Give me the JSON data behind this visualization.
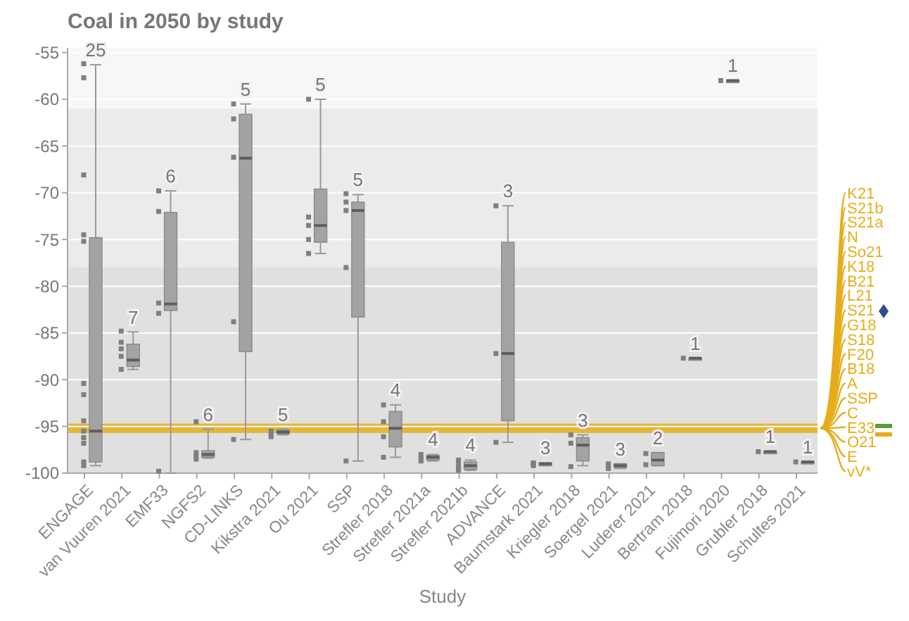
{
  "chart_data": {
    "type": "box",
    "title": "Coal in 2050 by study",
    "xlabel": "Study",
    "categories": [
      "ENGAGE",
      "van Vuuren 2021",
      "EMF33",
      "NGFS2",
      "CD-LINKS",
      "Kikstra 2021",
      "Ou 2021",
      "SSP",
      "Strefler 2018",
      "Strefler 2021a",
      "Strefler 2021b",
      "ADVANCE",
      "Baumstark 2021",
      "Kriegler 2018",
      "Soergel 2021",
      "Luderer 2021",
      "Bertram 2018",
      "Fujimori 2020",
      "Grubler 2018",
      "Schultes 2021"
    ],
    "color": "#a3a3a3",
    "boxes": [
      {
        "low": -99.2,
        "q1": -98.8,
        "median": -95.5,
        "q3": -74.8,
        "high": -56.3
      },
      {
        "low": -88.9,
        "q1": -88.6,
        "median": -87.9,
        "q3": -86.2,
        "high": -84.9
      },
      {
        "low": -100,
        "q1": -82.6,
        "median": -81.9,
        "q3": -72.1,
        "high": -69.8
      },
      {
        "low": -98.4,
        "q1": -98.3,
        "median": -98,
        "q3": -97.6,
        "high": -95.3
      },
      {
        "low": -96.4,
        "q1": -87,
        "median": -66.3,
        "q3": -61.6,
        "high": -60.5
      },
      {
        "low": -95.9,
        "q1": -95.8,
        "median": -95.6,
        "q3": -95.4,
        "high": -95.3
      },
      {
        "low": -76.5,
        "q1": -75.3,
        "median": -73.5,
        "q3": -69.6,
        "high": -60
      },
      {
        "low": -98.7,
        "q1": -83.3,
        "median": -71.9,
        "q3": -71,
        "high": -70.2
      },
      {
        "low": -98.3,
        "q1": -97.2,
        "median": -95.2,
        "q3": -93.4,
        "high": -92.7
      },
      {
        "low": -98.7,
        "q1": -98.6,
        "median": -98.3,
        "q3": -98.1,
        "high": -98
      },
      {
        "low": -99.7,
        "q1": -99.6,
        "median": -99.2,
        "q3": -98.8,
        "high": -98.6
      },
      {
        "low": -96.7,
        "q1": -94.4,
        "median": -87.2,
        "q3": -75.3,
        "high": -71.4
      },
      {
        "low": -99.2,
        "q1": -99.2,
        "median": -99,
        "q3": -98.9,
        "high": -98.9
      },
      {
        "low": -99.2,
        "q1": -98.7,
        "median": -97,
        "q3": -96.2,
        "high": -95.9
      },
      {
        "low": -99.5,
        "q1": -99.4,
        "median": -99.2,
        "q3": -99,
        "high": -99
      },
      {
        "low": -99.2,
        "q1": -99.2,
        "median": -98.6,
        "q3": -97.8,
        "high": -97.8
      },
      {
        "low": -87.7,
        "q1": -87.7,
        "median": -87.7,
        "q3": -87.7,
        "high": -87.7
      },
      {
        "low": -58,
        "q1": -58,
        "median": -58,
        "q3": -58,
        "high": -58
      },
      {
        "low": -97.7,
        "q1": -97.7,
        "median": -97.7,
        "q3": -97.7,
        "high": -97.7
      },
      {
        "low": -98.8,
        "q1": -98.8,
        "median": -98.8,
        "q3": -98.8,
        "high": -98.8
      }
    ],
    "series": [
      {
        "type": "scatter",
        "color": "#7f7f7f",
        "marker": "square",
        "x": [
          "ENGAGE",
          "ENGAGE",
          "ENGAGE",
          "ENGAGE",
          "ENGAGE",
          "ENGAGE",
          "ENGAGE",
          "ENGAGE",
          "ENGAGE",
          "ENGAGE",
          "ENGAGE",
          "ENGAGE",
          "ENGAGE",
          "van Vuuren 2021",
          "van Vuuren 2021",
          "van Vuuren 2021",
          "van Vuuren 2021",
          "van Vuuren 2021",
          "EMF33",
          "EMF33",
          "EMF33",
          "EMF33",
          "EMF33",
          "NGFS2",
          "NGFS2",
          "NGFS2",
          "NGFS2",
          "CD-LINKS",
          "CD-LINKS",
          "CD-LINKS",
          "CD-LINKS",
          "CD-LINKS",
          "Kikstra 2021",
          "Kikstra 2021",
          "Kikstra 2021",
          "Ou 2021",
          "Ou 2021",
          "Ou 2021",
          "Ou 2021",
          "Ou 2021",
          "SSP",
          "SSP",
          "SSP",
          "SSP",
          "SSP",
          "Strefler 2018",
          "Strefler 2018",
          "Strefler 2018",
          "Strefler 2018",
          "Strefler 2021a",
          "Strefler 2021a",
          "Strefler 2021a",
          "Strefler 2021a",
          "Strefler 2021b",
          "Strefler 2021b",
          "Strefler 2021b",
          "Strefler 2021b",
          "ADVANCE",
          "ADVANCE",
          "ADVANCE",
          "Baumstark 2021",
          "Baumstark 2021",
          "Baumstark 2021",
          "Kriegler 2018",
          "Kriegler 2018",
          "Kriegler 2018",
          "Soergel 2021",
          "Soergel 2021",
          "Soergel 2021",
          "Luderer 2021",
          "Luderer 2021",
          "Bertram 2018",
          "Fujimori 2020",
          "Grubler 2018",
          "Schultes 2021"
        ],
        "values": [
          -56.2,
          -57.7,
          -68.1,
          -74.5,
          -75.2,
          -90.4,
          -91.6,
          -94.4,
          -95.5,
          -96.2,
          -96.8,
          -98.8,
          -99.2,
          -84.8,
          -86,
          -86.7,
          -87.5,
          -88.9,
          -69.8,
          -72,
          -81.8,
          -82.9,
          -99.8,
          -94.5,
          -97.8,
          -98.2,
          -98.5,
          -60.5,
          -62.1,
          -66.2,
          -83.8,
          -96.4,
          -95.5,
          -95.9,
          -96.1,
          -60,
          -72.6,
          -73.5,
          -75,
          -76.5,
          -70.1,
          -71,
          -71.9,
          -78,
          -98.7,
          -92.7,
          -94.5,
          -96.1,
          -98.3,
          -98,
          -98.3,
          -98.5,
          -98.7,
          -98.6,
          -99,
          -99.4,
          -99.7,
          -71.4,
          -87.2,
          -96.7,
          -98.9,
          -99,
          -99.2,
          -95.9,
          -96.8,
          -99.3,
          -99,
          -99.2,
          -99.5,
          -97.9,
          -99.1,
          -87.7,
          -58,
          -97.7,
          -98.8
        ]
      }
    ],
    "ylim": [
      -100,
      -54.5
    ],
    "yticks": [
      -100,
      -95,
      -90,
      -85,
      -80,
      -75,
      -70,
      -65,
      -60,
      -55
    ],
    "grid": "y",
    "bands": [
      {
        "axis": "y",
        "from": -78,
        "to": -61,
        "color": "#ebebeb"
      },
      {
        "axis": "y",
        "from": -100,
        "to": -78,
        "color": "#e0e0e0"
      },
      {
        "axis": "y",
        "from": -95.7,
        "to": -94.7,
        "color": "#e6ad1a"
      }
    ],
    "annotations": [
      {
        "text": "25",
        "x": "ENGAGE",
        "y": -56.3
      },
      {
        "text": "7",
        "x": "van Vuuren 2021",
        "y": -84.9
      },
      {
        "text": "6",
        "x": "EMF33",
        "y": -69.8
      },
      {
        "text": "6",
        "x": "NGFS2",
        "y": -95.3
      },
      {
        "text": "5",
        "x": "CD-LINKS",
        "y": -60.5
      },
      {
        "text": "5",
        "x": "Kikstra 2021",
        "y": -95.3
      },
      {
        "text": "5",
        "x": "Ou 2021",
        "y": -60
      },
      {
        "text": "5",
        "x": "SSP",
        "y": -70.2
      },
      {
        "text": "4",
        "x": "Strefler 2018",
        "y": -92.7
      },
      {
        "text": "4",
        "x": "Strefler 2021a",
        "y": -98
      },
      {
        "text": "4",
        "x": "Strefler 2021b",
        "y": -98.6
      },
      {
        "text": "3",
        "x": "ADVANCE",
        "y": -71.4
      },
      {
        "text": "3",
        "x": "Baumstark 2021",
        "y": -98.9
      },
      {
        "text": "3",
        "x": "Kriegler 2018",
        "y": -95.9
      },
      {
        "text": "3",
        "x": "Soergel 2021",
        "y": -99
      },
      {
        "text": "2",
        "x": "Luderer 2021",
        "y": -97.8
      },
      {
        "text": "1",
        "x": "Bertram 2018",
        "y": -87.7
      },
      {
        "text": "1",
        "x": "Fujimori 2020",
        "y": -58
      },
      {
        "text": "1",
        "x": "Grubler 2018",
        "y": -97.7
      },
      {
        "text": "1",
        "x": "Schultes 2021",
        "y": -98.8
      },
      "K21",
      "S21b",
      "S21a",
      "N",
      "So21",
      "K18",
      "B21",
      "L21",
      "S21",
      "G18",
      "S18",
      "F20",
      "B18",
      "A",
      "SSP",
      "C",
      "E33",
      "O21",
      "E",
      "vV*"
    ]
  }
}
